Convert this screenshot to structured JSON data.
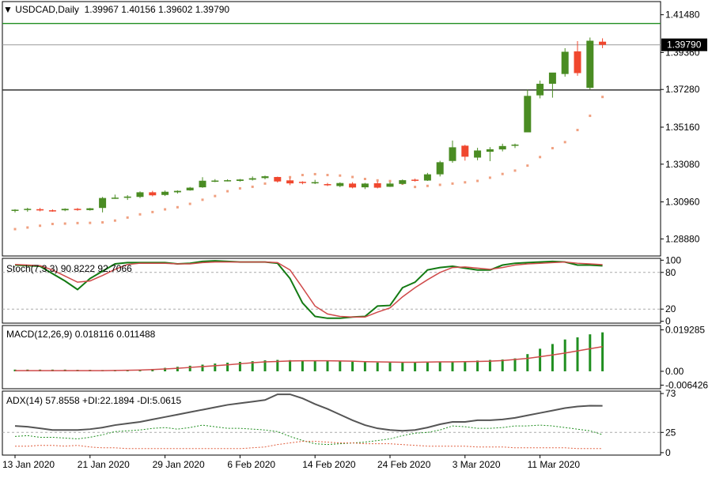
{
  "main_title": {
    "symbol": "USDCAD,Daily",
    "ohlc": "1.39967 1.40156 1.39602 1.39790"
  },
  "price_badge": "1.39790",
  "x_axis_labels": [
    "13 Jan 2020",
    "21 Jan 2020",
    "29 Jan 2020",
    "6 Feb 2020",
    "14 Feb 2020",
    "24 Feb 2020",
    "3 Mar 2020",
    "11 Mar 2020"
  ],
  "colors": {
    "bull": "#4a8c23",
    "bear": "#f0472e",
    "sar": "#f0a080",
    "stoch_main": "#137a13",
    "stoch_signal": "#cf4a4a",
    "macd_hist": "#208f20",
    "macd_signal": "#cf4a4a",
    "adx": "#555555",
    "plus_di": "#208f20",
    "minus_di": "#e06040",
    "level_line": "#208f20",
    "hline": "#333333"
  },
  "chart_data": [
    {
      "type": "candlestick",
      "title": "USDCAD,Daily",
      "values_label": "1.39967 1.40156 1.39602 1.39790",
      "last_price": "1.39790",
      "ylim": [
        1.2792,
        1.4222
      ],
      "y_ticks": [
        "1.41480",
        "1.39360",
        "1.37280",
        "1.35160",
        "1.33080",
        "1.30960",
        "1.28880"
      ],
      "horizontal_levels": [
        1.4099,
        1.3725
      ],
      "x_ticks": [
        {
          "label": "13 Jan 2020",
          "index": 0
        },
        {
          "label": "21 Jan 2020",
          "index": 6
        },
        {
          "label": "29 Jan 2020",
          "index": 12
        },
        {
          "label": "6 Feb 2020",
          "index": 18
        },
        {
          "label": "14 Feb 2020",
          "index": 24
        },
        {
          "label": "24 Feb 2020",
          "index": 30
        },
        {
          "label": "3 Mar 2020",
          "index": 36
        },
        {
          "label": "11 Mar 2020",
          "index": 42
        }
      ],
      "candles": [
        {
          "o": 1.3047,
          "h": 1.3055,
          "l": 1.3037,
          "c": 1.3052
        },
        {
          "o": 1.3052,
          "h": 1.3063,
          "l": 1.3041,
          "c": 1.3057
        },
        {
          "o": 1.3055,
          "h": 1.3062,
          "l": 1.3043,
          "c": 1.3048
        },
        {
          "o": 1.3049,
          "h": 1.3054,
          "l": 1.3041,
          "c": 1.3046
        },
        {
          "o": 1.3049,
          "h": 1.306,
          "l": 1.3044,
          "c": 1.3057
        },
        {
          "o": 1.3057,
          "h": 1.3062,
          "l": 1.3046,
          "c": 1.3051
        },
        {
          "o": 1.305,
          "h": 1.3062,
          "l": 1.3047,
          "c": 1.306
        },
        {
          "o": 1.3062,
          "h": 1.3124,
          "l": 1.3037,
          "c": 1.3118
        },
        {
          "o": 1.3117,
          "h": 1.3137,
          "l": 1.3113,
          "c": 1.312
        },
        {
          "o": 1.3119,
          "h": 1.3134,
          "l": 1.3107,
          "c": 1.3126
        },
        {
          "o": 1.3124,
          "h": 1.3155,
          "l": 1.3118,
          "c": 1.315
        },
        {
          "o": 1.315,
          "h": 1.3158,
          "l": 1.3127,
          "c": 1.3133
        },
        {
          "o": 1.3135,
          "h": 1.316,
          "l": 1.3129,
          "c": 1.3153
        },
        {
          "o": 1.315,
          "h": 1.3161,
          "l": 1.3143,
          "c": 1.3158
        },
        {
          "o": 1.3161,
          "h": 1.318,
          "l": 1.3159,
          "c": 1.3176
        },
        {
          "o": 1.3178,
          "h": 1.3235,
          "l": 1.3175,
          "c": 1.3215
        },
        {
          "o": 1.3213,
          "h": 1.3224,
          "l": 1.3207,
          "c": 1.3216
        },
        {
          "o": 1.3214,
          "h": 1.3223,
          "l": 1.3211,
          "c": 1.3218
        },
        {
          "o": 1.3214,
          "h": 1.3225,
          "l": 1.321,
          "c": 1.3222
        },
        {
          "o": 1.3221,
          "h": 1.3239,
          "l": 1.3216,
          "c": 1.3229
        },
        {
          "o": 1.323,
          "h": 1.3244,
          "l": 1.3223,
          "c": 1.324
        },
        {
          "o": 1.3236,
          "h": 1.3238,
          "l": 1.3205,
          "c": 1.3211
        },
        {
          "o": 1.3217,
          "h": 1.323,
          "l": 1.319,
          "c": 1.32
        },
        {
          "o": 1.3209,
          "h": 1.3212,
          "l": 1.3195,
          "c": 1.3203
        },
        {
          "o": 1.3203,
          "h": 1.322,
          "l": 1.3196,
          "c": 1.3207
        },
        {
          "o": 1.3196,
          "h": 1.3203,
          "l": 1.3185,
          "c": 1.319
        },
        {
          "o": 1.3185,
          "h": 1.3206,
          "l": 1.3179,
          "c": 1.3202
        },
        {
          "o": 1.3199,
          "h": 1.3207,
          "l": 1.3172,
          "c": 1.3177
        },
        {
          "o": 1.3178,
          "h": 1.3203,
          "l": 1.3168,
          "c": 1.3199
        },
        {
          "o": 1.3201,
          "h": 1.3212,
          "l": 1.3172,
          "c": 1.3176
        },
        {
          "o": 1.3181,
          "h": 1.3207,
          "l": 1.318,
          "c": 1.3199
        },
        {
          "o": 1.3197,
          "h": 1.3222,
          "l": 1.3194,
          "c": 1.3218
        },
        {
          "o": 1.3221,
          "h": 1.3227,
          "l": 1.321,
          "c": 1.3216
        },
        {
          "o": 1.3216,
          "h": 1.3259,
          "l": 1.3214,
          "c": 1.3251
        },
        {
          "o": 1.3251,
          "h": 1.3327,
          "l": 1.3239,
          "c": 1.3319
        },
        {
          "o": 1.3326,
          "h": 1.3441,
          "l": 1.3316,
          "c": 1.3403
        },
        {
          "o": 1.3412,
          "h": 1.3417,
          "l": 1.3328,
          "c": 1.335
        },
        {
          "o": 1.3345,
          "h": 1.34,
          "l": 1.333,
          "c": 1.3385
        },
        {
          "o": 1.3378,
          "h": 1.3404,
          "l": 1.3325,
          "c": 1.3392
        },
        {
          "o": 1.3391,
          "h": 1.3423,
          "l": 1.338,
          "c": 1.341
        },
        {
          "o": 1.3413,
          "h": 1.3424,
          "l": 1.3399,
          "c": 1.3418
        },
        {
          "o": 1.3487,
          "h": 1.3728,
          "l": 1.349,
          "c": 1.3692
        },
        {
          "o": 1.3695,
          "h": 1.3778,
          "l": 1.3678,
          "c": 1.376
        },
        {
          "o": 1.376,
          "h": 1.3822,
          "l": 1.3682,
          "c": 1.3823
        },
        {
          "o": 1.3815,
          "h": 1.396,
          "l": 1.38,
          "c": 1.394
        },
        {
          "o": 1.3942,
          "h": 1.4,
          "l": 1.3805,
          "c": 1.382
        },
        {
          "o": 1.3737,
          "h": 1.402,
          "l": 1.3727,
          "c": 1.4002
        },
        {
          "o": 1.39967,
          "h": 1.40156,
          "l": 1.39602,
          "c": 1.3979
        }
      ],
      "parabolic_sar": [
        1.2943,
        1.2952,
        1.2962,
        1.2972,
        1.2974,
        1.2977,
        1.2978,
        1.2981,
        1.2991,
        1.3008,
        1.3026,
        1.3039,
        1.3054,
        1.3066,
        1.3085,
        1.3108,
        1.3129,
        1.3156,
        1.3172,
        1.3181,
        1.3199,
        1.3218,
        1.3235,
        1.3247,
        1.3252,
        1.3247,
        1.3244,
        1.3236,
        1.3225,
        1.3217,
        1.3213,
        1.3198,
        1.318,
        1.3186,
        1.3192,
        1.3199,
        1.3206,
        1.3214,
        1.3232,
        1.3253,
        1.3272,
        1.33,
        1.3348,
        1.3398,
        1.3432,
        1.35,
        1.358,
        1.3686
      ]
    },
    {
      "type": "line",
      "title": "Stoch(7,3,3) 90.8222 92.7066",
      "label": "Stoch(7,3,3) 90.8222 92.7066",
      "ylim": [
        -3,
        103
      ],
      "y_ticks": [
        "100",
        "80",
        "20",
        "0"
      ],
      "levels": [
        80,
        20
      ],
      "series": [
        {
          "name": "main",
          "values": [
            92,
            91,
            90,
            78,
            66,
            52,
            70,
            82,
            94,
            96,
            96,
            96,
            96,
            94,
            95,
            98,
            99,
            98,
            97,
            97,
            97,
            95,
            70,
            30,
            8,
            5,
            5,
            7,
            8,
            25,
            26,
            55,
            64,
            84,
            88,
            90,
            87,
            84,
            84,
            92,
            95,
            96,
            97,
            98,
            97,
            92,
            92,
            90.8222
          ]
        },
        {
          "name": "signal",
          "values": [
            93,
            92,
            91,
            84,
            74,
            64,
            66,
            75,
            85,
            93,
            95,
            95,
            95,
            94,
            94,
            96,
            97,
            97,
            97,
            97,
            97,
            96,
            84,
            55,
            25,
            12,
            8,
            7,
            7,
            15,
            22,
            40,
            55,
            68,
            80,
            88,
            89,
            87,
            85,
            88,
            92,
            94,
            95,
            96,
            97,
            95,
            94,
            92.7066
          ]
        }
      ]
    },
    {
      "type": "bar",
      "title": "MACD(12,26,9) 0.018116 0.011488",
      "label": "MACD(12,26,9) 0.018116 0.011488",
      "ylim": [
        -0.0081,
        0.0213
      ],
      "y_ticks": [
        "0.019285",
        "0.00",
        "-0.006426"
      ],
      "series": [
        {
          "name": "histogram",
          "values": [
            0.0008,
            0.0008,
            0.0008,
            0.0008,
            0.0008,
            0.0007,
            0.0007,
            0.0006,
            0.0006,
            0.0006,
            0.0008,
            0.0011,
            0.0016,
            0.0021,
            0.0026,
            0.0031,
            0.0036,
            0.004,
            0.0044,
            0.0047,
            0.0051,
            0.0053,
            0.0052,
            0.0051,
            0.005,
            0.0049,
            0.0047,
            0.0045,
            0.0043,
            0.0041,
            0.004,
            0.004,
            0.0041,
            0.0042,
            0.0044,
            0.0046,
            0.0047,
            0.005,
            0.0053,
            0.0055,
            0.006,
            0.008,
            0.0105,
            0.0127,
            0.0148,
            0.0158,
            0.0172,
            0.018116
          ]
        },
        {
          "name": "signal",
          "values": [
            0.0003,
            0.0003,
            0.0003,
            0.0003,
            0.0003,
            0.0003,
            0.0003,
            0.0003,
            0.0004,
            0.0005,
            0.0006,
            0.0008,
            0.0011,
            0.0014,
            0.0018,
            0.0022,
            0.0026,
            0.003,
            0.0035,
            0.004,
            0.0044,
            0.0046,
            0.0048,
            0.0049,
            0.0049,
            0.0049,
            0.0048,
            0.0047,
            0.0045,
            0.0044,
            0.0043,
            0.0042,
            0.0042,
            0.0043,
            0.0044,
            0.0044,
            0.0045,
            0.0046,
            0.0047,
            0.005,
            0.0055,
            0.006,
            0.0068,
            0.0076,
            0.0085,
            0.0095,
            0.0105,
            0.011488
          ]
        }
      ]
    },
    {
      "type": "line",
      "title": "ADX(14) 57.8558 +DI:22.1894 -DI:5.0615",
      "label": "ADX(14) 57.8558 +DI:22.1894 -DI:5.0615",
      "ylim": [
        -3,
        76
      ],
      "y_ticks": [
        "73",
        "25",
        "0"
      ],
      "levels": [
        25
      ],
      "series": [
        {
          "name": "ADX",
          "values": [
            33,
            32,
            30,
            28,
            28,
            28,
            29,
            31,
            34,
            36,
            38,
            41,
            44,
            47,
            50,
            53,
            56,
            59,
            61,
            63,
            65,
            72,
            72,
            67,
            60,
            54,
            47,
            40,
            34,
            30,
            28,
            27,
            28,
            31,
            35,
            38,
            38,
            40,
            40,
            41,
            43,
            46,
            49,
            52,
            55,
            57,
            58,
            57.8558
          ]
        },
        {
          "name": "+DI",
          "values": [
            20,
            21,
            19,
            19,
            18,
            17,
            19,
            22,
            26,
            27,
            28,
            30,
            31,
            29,
            31,
            34,
            32,
            30,
            30,
            29,
            28,
            26,
            20,
            15,
            11,
            10,
            11,
            12,
            13,
            15,
            17,
            21,
            24,
            25,
            28,
            33,
            32,
            30,
            30,
            31,
            33,
            33,
            34,
            33,
            31,
            29,
            27,
            22.1894
          ]
        },
        {
          "name": "-DI",
          "values": [
            8,
            8,
            9,
            9,
            8,
            9,
            7,
            6,
            6,
            5,
            5,
            5,
            5,
            5,
            5,
            5,
            5,
            5,
            5,
            6,
            7,
            10,
            12,
            14,
            14,
            13,
            12,
            12,
            11,
            11,
            11,
            10,
            9,
            8,
            8,
            8,
            8,
            7,
            7,
            7,
            6,
            6,
            6,
            6,
            6,
            5,
            5,
            5.0615
          ]
        }
      ]
    }
  ]
}
